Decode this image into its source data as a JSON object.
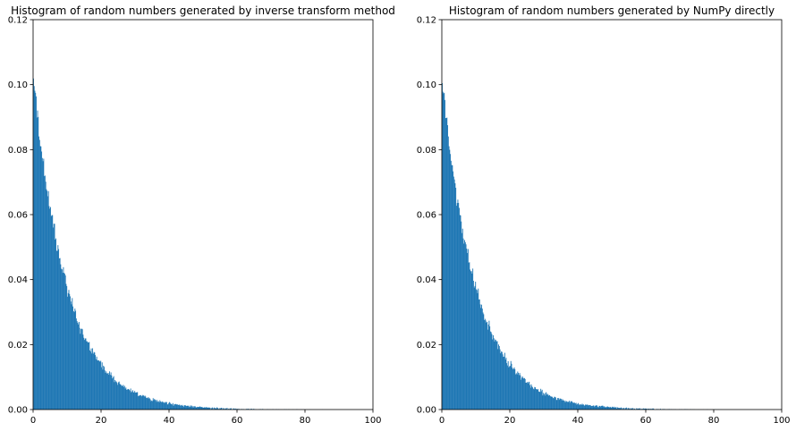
{
  "chart_data": [
    {
      "type": "bar",
      "title": "Histogram of random numbers generated by inverse transform method",
      "xlabel": "",
      "ylabel": "",
      "xlim": [
        0,
        100
      ],
      "ylim": [
        0,
        0.12
      ],
      "xticks": [
        "0",
        "20",
        "40",
        "60",
        "80",
        "100"
      ],
      "yticks": [
        "0.00",
        "0.02",
        "0.04",
        "0.06",
        "0.08",
        "0.10",
        "0.12"
      ],
      "bar_color": "#1f77b4",
      "grid": false,
      "distribution": "exponential",
      "scale": 10,
      "peak_density": 0.102,
      "approx_max_x": 86,
      "bin_width": 0.2
    },
    {
      "type": "bar",
      "title": "Histogram of random numbers generated by NumPy directly",
      "xlabel": "",
      "ylabel": "",
      "xlim": [
        0,
        100
      ],
      "ylim": [
        0,
        0.12
      ],
      "xticks": [
        "0",
        "20",
        "40",
        "60",
        "80",
        "100"
      ],
      "yticks": [
        "0.00",
        "0.02",
        "0.04",
        "0.06",
        "0.08",
        "0.10",
        "0.12"
      ],
      "bar_color": "#1f77b4",
      "grid": false,
      "distribution": "exponential",
      "scale": 10,
      "peak_density": 0.102,
      "approx_max_x": 83,
      "bin_width": 0.2
    }
  ]
}
